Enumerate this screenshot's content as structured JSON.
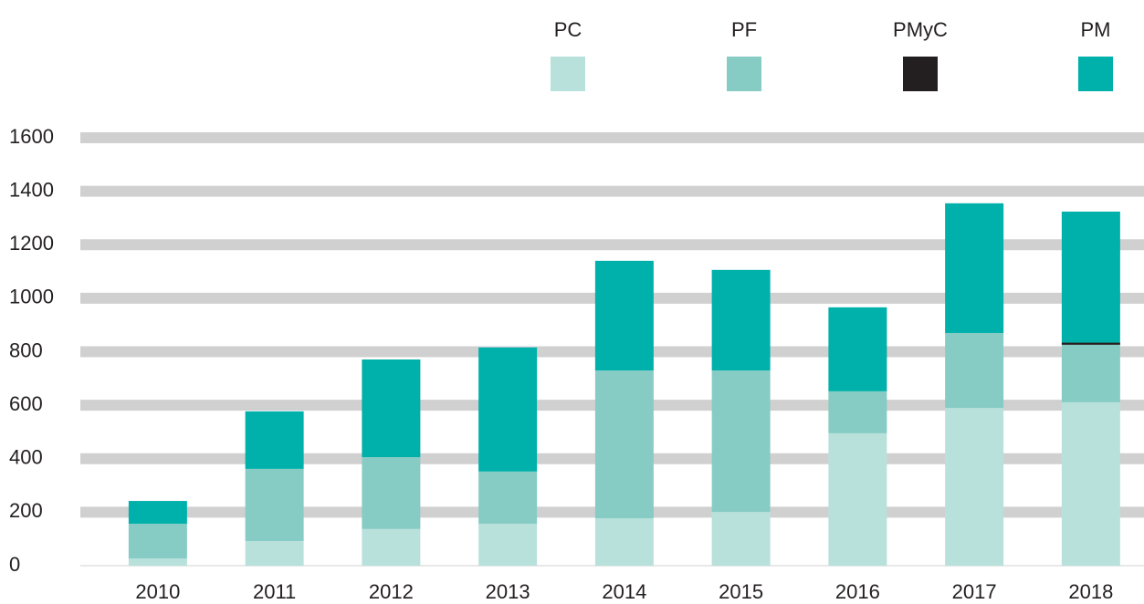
{
  "chart_data": {
    "type": "stacked_bar",
    "categories": [
      "2010",
      "2011",
      "2012",
      "2013",
      "2014",
      "2015",
      "2016",
      "2017",
      "2018"
    ],
    "series": [
      {
        "name": "PC",
        "color": "#b9e1dc",
        "values": [
          27,
          92,
          137,
          157,
          177,
          201,
          495,
          590,
          611
        ]
      },
      {
        "name": "PF",
        "color": "#86ccc4",
        "values": [
          130,
          270,
          269,
          195,
          553,
          529,
          157,
          280,
          215
        ]
      },
      {
        "name": "PMyC",
        "color": "#231f20",
        "values": [
          0,
          0,
          0,
          0,
          0,
          0,
          0,
          0,
          8
        ]
      },
      {
        "name": "PM",
        "color": "#00b0aa",
        "values": [
          85,
          215,
          365,
          464,
          410,
          376,
          314,
          485,
          490
        ]
      }
    ],
    "ylim": [
      0,
      1600
    ],
    "yticks": [
      0,
      200,
      400,
      600,
      800,
      1000,
      1200,
      1400,
      1600
    ],
    "grid": true
  }
}
